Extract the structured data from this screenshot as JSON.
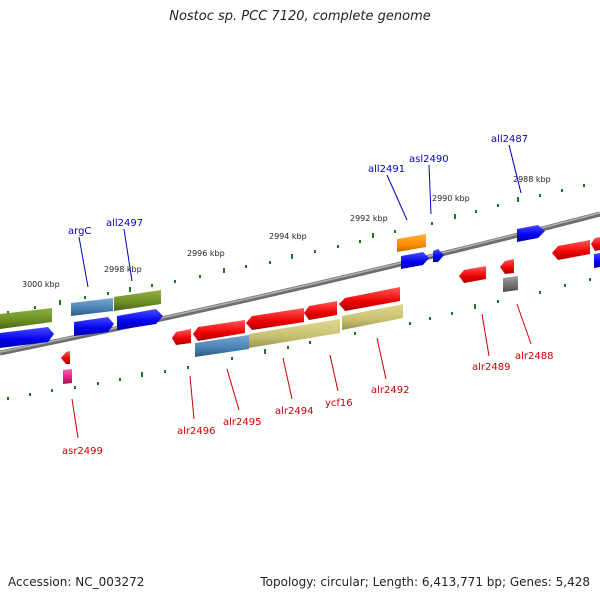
{
  "title": "Nostoc sp. PCC 7120, complete genome",
  "footer": {
    "accession": "Accession: NC_003272",
    "summary": "Topology: circular; Length: 6,413,771 bp; Genes: 5,428"
  },
  "scale_labels": [
    "3000 kbp",
    "2998 kbp",
    "2996 kbp",
    "2994 kbp",
    "2992 kbp",
    "2990 kbp",
    "2988 kbp"
  ],
  "top_gene_labels": [
    "argC",
    "all2497",
    "all2491",
    "asl2490",
    "all2487"
  ],
  "bottom_gene_labels": [
    "asr2499",
    "alr2496",
    "alr2495",
    "alr2494",
    "ycf16",
    "alr2492",
    "alr2489",
    "alr2488"
  ],
  "colors": {
    "forward_strand": "#ff0000",
    "reverse_strand": "#0000ff",
    "cog_green": "#6b8e23",
    "cog_steelblue": "#4682b4",
    "cog_khaki": "#c8c070",
    "cog_orange": "#ff8c00",
    "cog_gray": "#707070",
    "cog_magenta": "#e0207a",
    "backbone": "#808080",
    "tick": "#1a7a1a"
  }
}
